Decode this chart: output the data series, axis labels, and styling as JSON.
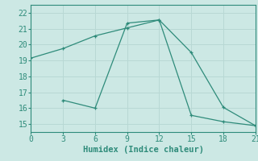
{
  "xlabel": "Humidex (Indice chaleur)",
  "background_color": "#cce8e4",
  "grid_color": "#b8d8d4",
  "line_color": "#2e8b7a",
  "xlim": [
    0,
    21
  ],
  "ylim": [
    14.5,
    22.5
  ],
  "xticks": [
    0,
    3,
    6,
    9,
    12,
    15,
    18,
    21
  ],
  "yticks": [
    15,
    16,
    17,
    18,
    19,
    20,
    21,
    22
  ],
  "series1_x": [
    0,
    3,
    6,
    9,
    12,
    15,
    18,
    21
  ],
  "series1_y": [
    19.15,
    19.75,
    20.55,
    21.05,
    21.55,
    19.5,
    16.05,
    14.9
  ],
  "series2_x": [
    3,
    6,
    9,
    12,
    15,
    18,
    21
  ],
  "series2_y": [
    16.5,
    16.0,
    21.35,
    21.55,
    15.55,
    15.15,
    14.9
  ],
  "xlabel_fontsize": 7.5,
  "tick_fontsize": 7
}
